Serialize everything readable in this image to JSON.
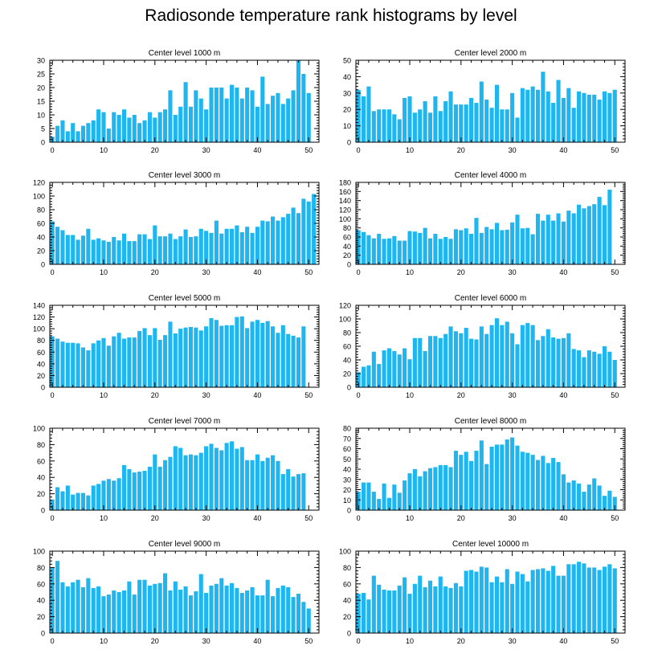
{
  "title": "Radiosonde temperature rank histograms by level",
  "chart_data": [
    {
      "type": "bar",
      "title": "Center level 1000 m",
      "ylim": [
        0,
        30
      ],
      "yticks": [
        0,
        5,
        10,
        15,
        20,
        25,
        30
      ],
      "xlim": [
        -0.5,
        52
      ],
      "xticks": [
        0,
        10,
        20,
        30,
        40,
        50
      ],
      "values": [
        2,
        6,
        8,
        4,
        7,
        4,
        6,
        7,
        8,
        12,
        11,
        5,
        11,
        10,
        12,
        9,
        10,
        7,
        8,
        11,
        9,
        11,
        12,
        19,
        10,
        13,
        22,
        13,
        19,
        16,
        12,
        20,
        20,
        20,
        16,
        21,
        20,
        16,
        20,
        19,
        13,
        24,
        14,
        17,
        18,
        14,
        16,
        19,
        30,
        25,
        18
      ]
    },
    {
      "type": "bar",
      "title": "Center level 2000 m",
      "ylim": [
        0,
        50
      ],
      "yticks": [
        0,
        10,
        20,
        30,
        40,
        50
      ],
      "xlim": [
        -0.5,
        52
      ],
      "xticks": [
        0,
        10,
        20,
        30,
        40,
        50
      ],
      "values": [
        32,
        28,
        34,
        19,
        20,
        20,
        20,
        17,
        14,
        27,
        28,
        18,
        20,
        25,
        18,
        28,
        19,
        25,
        31,
        23,
        23,
        23,
        27,
        24,
        37,
        26,
        21,
        35,
        20,
        20,
        30,
        15,
        33,
        32,
        34,
        32,
        43,
        31,
        24,
        38,
        27,
        33,
        21,
        31,
        30,
        29,
        29,
        26,
        31,
        30,
        32
      ]
    },
    {
      "type": "bar",
      "title": "Center level 3000 m",
      "ylim": [
        0,
        120
      ],
      "yticks": [
        0,
        20,
        40,
        60,
        80,
        100,
        120
      ],
      "xlim": [
        -0.5,
        52
      ],
      "xticks": [
        0,
        10,
        20,
        30,
        40,
        50
      ],
      "values": [
        63,
        55,
        50,
        43,
        43,
        36,
        42,
        52,
        36,
        38,
        35,
        33,
        40,
        35,
        45,
        34,
        34,
        44,
        44,
        37,
        57,
        41,
        41,
        45,
        37,
        41,
        51,
        40,
        41,
        52,
        49,
        46,
        64,
        45,
        52,
        52,
        57,
        47,
        55,
        46,
        55,
        64,
        63,
        70,
        64,
        69,
        74,
        83,
        75,
        96,
        92,
        103
      ]
    },
    {
      "type": "bar",
      "title": "Center level 4000 m",
      "ylim": [
        0,
        180
      ],
      "yticks": [
        0,
        20,
        40,
        60,
        80,
        100,
        120,
        140,
        160,
        180
      ],
      "xlim": [
        -0.5,
        52
      ],
      "xticks": [
        0,
        10,
        20,
        30,
        40,
        50
      ],
      "values": [
        75,
        71,
        64,
        57,
        67,
        56,
        57,
        62,
        52,
        52,
        73,
        72,
        69,
        80,
        57,
        67,
        56,
        60,
        56,
        77,
        75,
        79,
        67,
        102,
        69,
        82,
        77,
        91,
        75,
        76,
        92,
        109,
        79,
        80,
        66,
        111,
        96,
        109,
        96,
        112,
        94,
        118,
        112,
        131,
        123,
        128,
        132,
        148,
        130,
        164
      ]
    },
    {
      "type": "bar",
      "title": "Center level 5000 m",
      "ylim": [
        0,
        140
      ],
      "yticks": [
        0,
        20,
        40,
        60,
        80,
        100,
        120,
        140
      ],
      "xlim": [
        -0.5,
        52
      ],
      "xticks": [
        0,
        10,
        20,
        30,
        40,
        50
      ],
      "values": [
        87,
        83,
        78,
        76,
        76,
        75,
        68,
        63,
        75,
        80,
        84,
        71,
        87,
        93,
        83,
        85,
        85,
        96,
        101,
        89,
        101,
        81,
        89,
        112,
        92,
        100,
        102,
        103,
        102,
        97,
        104,
        118,
        115,
        105,
        106,
        106,
        120,
        121,
        101,
        112,
        115,
        110,
        113,
        104,
        93,
        106,
        91,
        88,
        85,
        104
      ]
    },
    {
      "type": "bar",
      "title": "Center level 6000 m",
      "ylim": [
        0,
        120
      ],
      "yticks": [
        0,
        20,
        40,
        60,
        80,
        100,
        120
      ],
      "xlim": [
        -0.5,
        52
      ],
      "xticks": [
        0,
        10,
        20,
        30,
        40,
        50
      ],
      "values": [
        22,
        30,
        32,
        52,
        34,
        54,
        57,
        53,
        48,
        57,
        41,
        72,
        72,
        53,
        75,
        75,
        72,
        78,
        89,
        82,
        79,
        87,
        71,
        70,
        89,
        78,
        91,
        101,
        91,
        96,
        79,
        63,
        91,
        94,
        91,
        69,
        75,
        85,
        73,
        71,
        72,
        79,
        56,
        54,
        44,
        54,
        52,
        49,
        60,
        52,
        40
      ]
    },
    {
      "type": "bar",
      "title": "Center level 7000 m",
      "ylim": [
        0,
        100
      ],
      "yticks": [
        0,
        20,
        40,
        60,
        80,
        100
      ],
      "xlim": [
        -0.5,
        52
      ],
      "xticks": [
        0,
        10,
        20,
        30,
        40,
        50
      ],
      "values": [
        13,
        28,
        23,
        30,
        19,
        21,
        21,
        18,
        30,
        32,
        36,
        38,
        36,
        39,
        55,
        50,
        46,
        47,
        48,
        53,
        68,
        53,
        61,
        65,
        78,
        76,
        67,
        68,
        67,
        70,
        78,
        81,
        76,
        73,
        82,
        84,
        75,
        77,
        61,
        61,
        68,
        60,
        64,
        67,
        60,
        44,
        50,
        41,
        44,
        45
      ]
    },
    {
      "type": "bar",
      "title": "Center level 8000 m",
      "ylim": [
        0,
        80
      ],
      "yticks": [
        0,
        10,
        20,
        30,
        40,
        50,
        60,
        70,
        80
      ],
      "xlim": [
        -0.5,
        52
      ],
      "xticks": [
        0,
        10,
        20,
        30,
        40,
        50
      ],
      "values": [
        18,
        27,
        27,
        18,
        11,
        26,
        12,
        25,
        17,
        29,
        36,
        40,
        33,
        38,
        41,
        42,
        44,
        44,
        42,
        58,
        54,
        57,
        48,
        58,
        68,
        45,
        62,
        64,
        64,
        69,
        71,
        63,
        57,
        56,
        54,
        49,
        53,
        46,
        51,
        47,
        35,
        27,
        29,
        26,
        18,
        25,
        31,
        24,
        14,
        19,
        13
      ]
    },
    {
      "type": "bar",
      "title": "Center level 9000 m",
      "ylim": [
        0,
        100
      ],
      "yticks": [
        0,
        20,
        40,
        60,
        80,
        100
      ],
      "xlim": [
        -0.5,
        52
      ],
      "xticks": [
        0,
        10,
        20,
        30,
        40,
        50
      ],
      "values": [
        80,
        88,
        62,
        57,
        62,
        65,
        56,
        67,
        55,
        57,
        45,
        47,
        52,
        50,
        52,
        63,
        47,
        65,
        65,
        58,
        60,
        61,
        73,
        52,
        63,
        53,
        57,
        46,
        51,
        72,
        49,
        58,
        60,
        67,
        58,
        61,
        55,
        49,
        52,
        56,
        46,
        46,
        65,
        45,
        55,
        58,
        56,
        44,
        48,
        38,
        30
      ]
    },
    {
      "type": "bar",
      "title": "Center level 10000 m",
      "ylim": [
        0,
        100
      ],
      "yticks": [
        0,
        20,
        40,
        60,
        80,
        100
      ],
      "xlim": [
        -0.5,
        52
      ],
      "xticks": [
        0,
        10,
        20,
        30,
        40,
        50
      ],
      "values": [
        48,
        49,
        41,
        70,
        59,
        53,
        52,
        52,
        58,
        68,
        48,
        60,
        70,
        56,
        64,
        57,
        69,
        57,
        55,
        61,
        57,
        76,
        77,
        75,
        81,
        80,
        62,
        69,
        62,
        78,
        60,
        75,
        72,
        63,
        77,
        78,
        79,
        76,
        82,
        70,
        70,
        84,
        84,
        87,
        85,
        80,
        80,
        77,
        81,
        84,
        79
      ]
    }
  ]
}
